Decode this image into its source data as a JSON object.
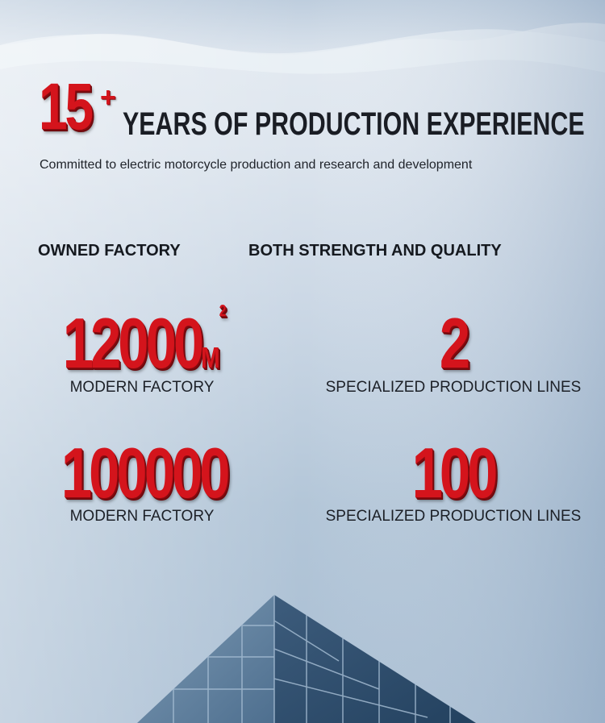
{
  "hero": {
    "number": "15",
    "plus": "+",
    "title": "YEARS OF PRODUCTION EXPERIENCE",
    "subtitle": "Committed to electric motorcycle production and research and development"
  },
  "sections": {
    "left_heading": "OWNED FACTORY",
    "right_heading": "BOTH STRENGTH AND QUALITY"
  },
  "stats": [
    {
      "value": "12000",
      "unit": "M",
      "unit_sup": "2",
      "label": "MODERN FACTORY"
    },
    {
      "value": "2",
      "label": "SPECIALIZED PRODUCTION LINES"
    },
    {
      "value": "100000",
      "label": "MODERN FACTORY"
    },
    {
      "value": "100",
      "label": "SPECIALIZED PRODUCTION LINES"
    }
  ],
  "colors": {
    "accent_red": "#d4141c",
    "text_dark": "#1a1d24"
  }
}
